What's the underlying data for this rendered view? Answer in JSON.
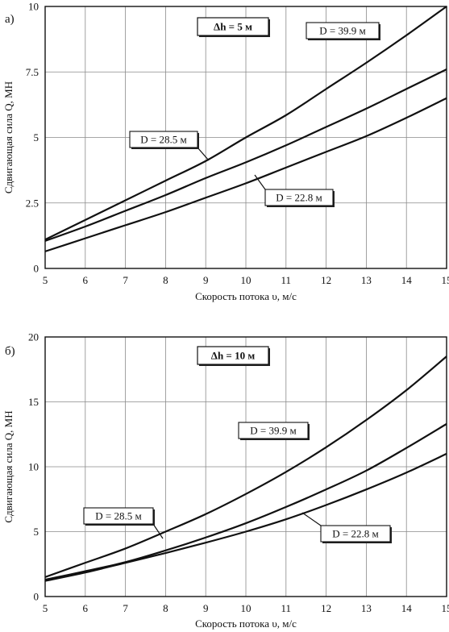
{
  "chart_data": [
    {
      "type": "line",
      "panel_label": "а)",
      "annotation": "Δh = 5 м",
      "xlabel": "Скорость потока υ, м/с",
      "ylabel": "Сдвигающая сила Q, МН",
      "xlim": [
        5,
        15
      ],
      "ylim": [
        0,
        10
      ],
      "x_ticks": [
        "5",
        "6",
        "7",
        "8",
        "9",
        "10",
        "11",
        "12",
        "13",
        "14",
        "15"
      ],
      "y_ticks": [
        "0",
        "2.5",
        "5",
        "7.5",
        "10"
      ],
      "grid": true,
      "x": [
        5,
        6,
        7,
        8,
        9,
        10,
        11,
        12,
        13,
        14,
        15
      ],
      "series": [
        {
          "name": "D = 39.9 м",
          "values": [
            1.1,
            1.85,
            2.6,
            3.35,
            4.1,
            5.0,
            5.85,
            6.85,
            7.85,
            8.9,
            10.0
          ]
        },
        {
          "name": "D = 28.5 м",
          "values": [
            1.05,
            1.6,
            2.2,
            2.8,
            3.45,
            4.05,
            4.7,
            5.4,
            6.1,
            6.85,
            7.6
          ]
        },
        {
          "name": "D = 22.8 м",
          "values": [
            0.65,
            1.15,
            1.65,
            2.15,
            2.7,
            3.25,
            3.85,
            4.45,
            5.05,
            5.75,
            6.5
          ]
        }
      ]
    },
    {
      "type": "line",
      "panel_label": "б)",
      "annotation": "Δh = 10 м",
      "xlabel": "Скорость потока υ, м/с",
      "ylabel": "Сдвигающая сила Q, МН",
      "xlim": [
        5,
        15
      ],
      "ylim": [
        0,
        20
      ],
      "x_ticks": [
        "5",
        "6",
        "7",
        "8",
        "9",
        "10",
        "11",
        "12",
        "13",
        "14",
        "15"
      ],
      "y_ticks": [
        "0",
        "5",
        "10",
        "15",
        "20"
      ],
      "grid": true,
      "x": [
        5,
        6,
        7,
        8,
        9,
        10,
        11,
        12,
        13,
        14,
        15
      ],
      "series": [
        {
          "name": "D = 39.9 м",
          "values": [
            1.5,
            2.6,
            3.7,
            5.0,
            6.35,
            7.9,
            9.6,
            11.5,
            13.6,
            15.9,
            18.5
          ]
        },
        {
          "name": "D = 28.5 м",
          "values": [
            1.3,
            1.95,
            2.65,
            3.55,
            4.55,
            5.65,
            6.9,
            8.25,
            9.7,
            11.45,
            13.3
          ]
        },
        {
          "name": "D = 22.8 м",
          "values": [
            1.2,
            1.85,
            2.6,
            3.35,
            4.15,
            5.0,
            5.95,
            7.05,
            8.25,
            9.55,
            11.0
          ]
        }
      ]
    }
  ]
}
